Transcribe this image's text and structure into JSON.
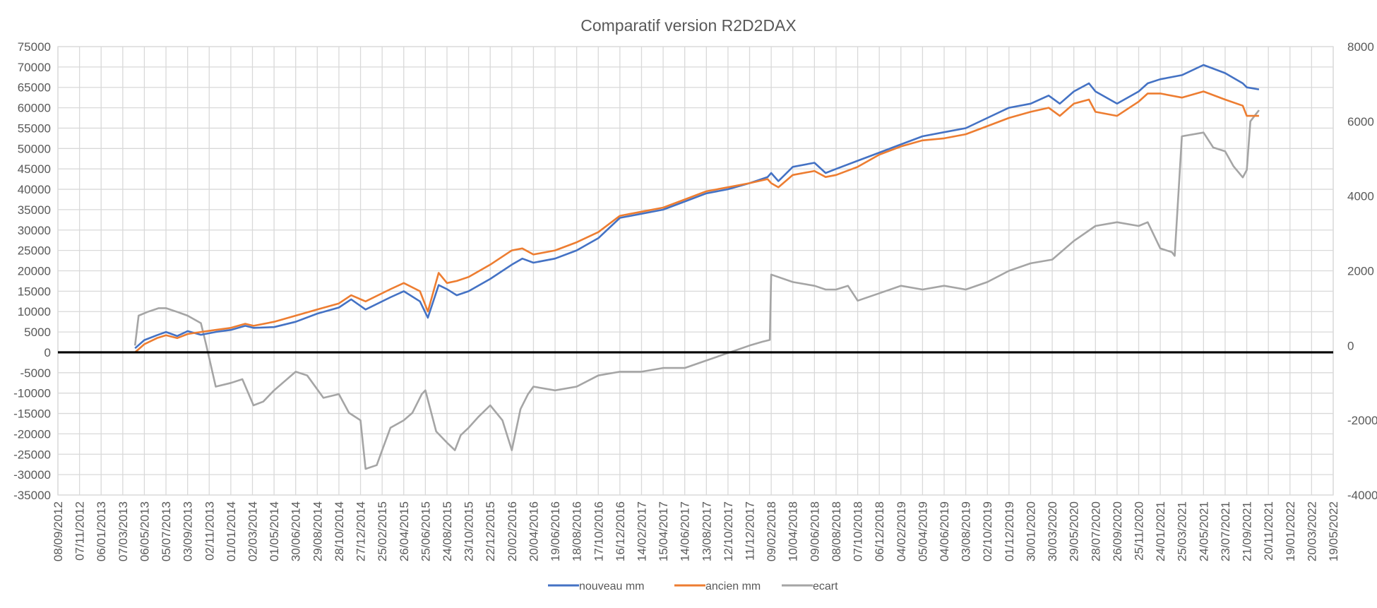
{
  "chart_data": {
    "type": "line",
    "title": "Comparatif version R2D2DAX",
    "xlabel": "",
    "ylabel": "",
    "y2label": "",
    "xlim": [
      "2012-09-08",
      "2022-05-19"
    ],
    "ylim": [
      -35000,
      75000
    ],
    "y2lim": [
      -4000,
      8000
    ],
    "x_tick_labels": [
      "08/09/2012",
      "07/11/2012",
      "06/01/2013",
      "07/03/2013",
      "06/05/2013",
      "05/07/2013",
      "03/09/2013",
      "02/11/2013",
      "01/01/2014",
      "02/03/2014",
      "01/05/2014",
      "30/06/2014",
      "29/08/2014",
      "28/10/2014",
      "27/12/2014",
      "25/02/2015",
      "26/04/2015",
      "25/06/2015",
      "24/08/2015",
      "23/10/2015",
      "22/12/2015",
      "20/02/2016",
      "20/04/2016",
      "19/06/2016",
      "18/08/2016",
      "17/10/2016",
      "16/12/2016",
      "14/02/2017",
      "15/04/2017",
      "14/06/2017",
      "13/08/2017",
      "12/10/2017",
      "11/12/2017",
      "09/02/2018",
      "10/04/2018",
      "09/06/2018",
      "08/08/2018",
      "07/10/2018",
      "06/12/2018",
      "04/02/2019",
      "05/04/2019",
      "04/06/2019",
      "03/08/2019",
      "02/10/2019",
      "01/12/2019",
      "30/01/2020",
      "30/03/2020",
      "29/05/2020",
      "28/07/2020",
      "26/09/2020",
      "25/11/2020",
      "24/01/2021",
      "25/03/2021",
      "24/05/2021",
      "23/07/2021",
      "21/09/2021",
      "20/11/2021",
      "19/01/2022",
      "20/03/2022",
      "19/05/2022"
    ],
    "y_tick_labels": [
      "75000",
      "70000",
      "65000",
      "60000",
      "55000",
      "50000",
      "45000",
      "40000",
      "35000",
      "30000",
      "25000",
      "20000",
      "15000",
      "10000",
      "5000",
      "0",
      "-5000",
      "-10000",
      "-15000",
      "-20000",
      "-25000",
      "-30000",
      "-35000"
    ],
    "y2_tick_labels": [
      "8000",
      "6000",
      "4000",
      "2000",
      "0",
      "-2000",
      "-4000"
    ],
    "grid": true,
    "legend_position": "bottom",
    "baseline_color": "#000000",
    "series": [
      {
        "name": "nouveau mm",
        "axis": "primary",
        "color": "#4472C4",
        "x": [
          "2013-04-10",
          "2013-05-06",
          "2013-06-10",
          "2013-07-05",
          "2013-08-05",
          "2013-09-03",
          "2013-10-10",
          "2013-11-20",
          "2014-01-01",
          "2014-02-10",
          "2014-03-05",
          "2014-05-01",
          "2014-06-30",
          "2014-08-29",
          "2014-10-28",
          "2014-12-01",
          "2015-01-10",
          "2015-03-20",
          "2015-04-26",
          "2015-06-10",
          "2015-07-02",
          "2015-08-01",
          "2015-08-24",
          "2015-09-20",
          "2015-10-23",
          "2015-12-22",
          "2016-02-20",
          "2016-03-20",
          "2016-04-20",
          "2016-06-19",
          "2016-08-18",
          "2016-10-17",
          "2016-12-16",
          "2017-02-14",
          "2017-04-15",
          "2017-06-14",
          "2017-08-13",
          "2017-10-12",
          "2017-12-11",
          "2018-01-30",
          "2018-02-09",
          "2018-03-01",
          "2018-04-10",
          "2018-06-09",
          "2018-07-10",
          "2018-08-08",
          "2018-10-07",
          "2018-12-06",
          "2019-02-04",
          "2019-04-05",
          "2019-06-04",
          "2019-08-03",
          "2019-10-02",
          "2019-12-01",
          "2020-01-30",
          "2020-03-20",
          "2020-04-20",
          "2020-05-29",
          "2020-07-10",
          "2020-07-28",
          "2020-09-26",
          "2020-11-25",
          "2020-12-20",
          "2021-01-24",
          "2021-03-25",
          "2021-05-24",
          "2021-07-23",
          "2021-09-10",
          "2021-09-21",
          "2021-10-25"
        ],
        "y": [
          1000,
          3000,
          4200,
          5000,
          4000,
          5200,
          4300,
          5000,
          5500,
          6500,
          6000,
          6200,
          7500,
          9500,
          11000,
          13000,
          10500,
          13500,
          15000,
          12500,
          8500,
          16500,
          15500,
          14000,
          15000,
          18000,
          21500,
          23000,
          22000,
          23000,
          25000,
          28000,
          33000,
          34000,
          35000,
          37000,
          39000,
          40000,
          41500,
          43000,
          44000,
          42000,
          45500,
          46500,
          44000,
          45000,
          47000,
          49000,
          51000,
          53000,
          54000,
          55000,
          57500,
          60000,
          61000,
          63000,
          61000,
          64000,
          66000,
          64000,
          61000,
          64000,
          66000,
          67000,
          68000,
          70500,
          68500,
          66000,
          65000,
          64500
        ]
      },
      {
        "name": "ancien mm",
        "axis": "primary",
        "color": "#ED7D31",
        "x": [
          "2013-04-10",
          "2013-05-06",
          "2013-06-10",
          "2013-07-05",
          "2013-08-05",
          "2013-09-03",
          "2013-10-10",
          "2013-11-20",
          "2014-01-01",
          "2014-02-10",
          "2014-03-05",
          "2014-05-01",
          "2014-06-30",
          "2014-08-29",
          "2014-10-28",
          "2014-12-01",
          "2015-01-10",
          "2015-03-20",
          "2015-04-26",
          "2015-06-10",
          "2015-07-02",
          "2015-08-01",
          "2015-08-24",
          "2015-09-20",
          "2015-10-23",
          "2015-12-22",
          "2016-02-20",
          "2016-03-20",
          "2016-04-20",
          "2016-06-19",
          "2016-08-18",
          "2016-10-17",
          "2016-12-16",
          "2017-02-14",
          "2017-04-15",
          "2017-06-14",
          "2017-08-13",
          "2017-10-12",
          "2017-12-11",
          "2018-01-30",
          "2018-02-09",
          "2018-03-01",
          "2018-04-10",
          "2018-06-09",
          "2018-07-10",
          "2018-08-08",
          "2018-10-07",
          "2018-12-06",
          "2019-02-04",
          "2019-04-05",
          "2019-06-04",
          "2019-08-03",
          "2019-10-02",
          "2019-12-01",
          "2020-01-30",
          "2020-03-20",
          "2020-04-20",
          "2020-05-29",
          "2020-07-10",
          "2020-07-28",
          "2020-09-26",
          "2020-11-25",
          "2020-12-20",
          "2021-01-24",
          "2021-03-25",
          "2021-05-24",
          "2021-07-23",
          "2021-09-10",
          "2021-09-21",
          "2021-10-25"
        ],
        "y": [
          0,
          2000,
          3500,
          4200,
          3500,
          4500,
          5000,
          5500,
          6000,
          7000,
          6500,
          7500,
          9000,
          10500,
          12000,
          14000,
          12500,
          15500,
          17000,
          15000,
          10000,
          19500,
          17000,
          17500,
          18500,
          21500,
          25000,
          25500,
          24000,
          25000,
          27000,
          29500,
          33500,
          34500,
          35500,
          37500,
          39500,
          40500,
          41500,
          42500,
          41500,
          40500,
          43500,
          44500,
          43000,
          43500,
          45500,
          48500,
          50500,
          52000,
          52500,
          53500,
          55500,
          57500,
          59000,
          60000,
          58000,
          61000,
          62000,
          59000,
          58000,
          61500,
          63500,
          63500,
          62500,
          64000,
          62000,
          60500,
          58000,
          58000
        ]
      },
      {
        "name": "ecart",
        "axis": "secondary",
        "color": "#A5A5A5",
        "x": [
          "2013-04-10",
          "2013-04-20",
          "2013-05-15",
          "2013-06-15",
          "2013-07-05",
          "2013-08-05",
          "2013-09-03",
          "2013-10-10",
          "2013-10-25",
          "2013-11-20",
          "2014-01-01",
          "2014-02-02",
          "2014-03-05",
          "2014-04-01",
          "2014-05-01",
          "2014-06-30",
          "2014-08-01",
          "2014-09-15",
          "2014-10-28",
          "2014-11-25",
          "2014-12-27",
          "2015-01-10",
          "2015-02-10",
          "2015-02-25",
          "2015-03-20",
          "2015-04-26",
          "2015-05-20",
          "2015-06-15",
          "2015-06-25",
          "2015-07-25",
          "2015-08-24",
          "2015-09-15",
          "2015-10-01",
          "2015-10-23",
          "2015-11-20",
          "2015-12-22",
          "2016-01-25",
          "2016-02-20",
          "2016-03-15",
          "2016-04-05",
          "2016-04-20",
          "2016-06-19",
          "2016-08-18",
          "2016-10-17",
          "2016-12-16",
          "2017-02-14",
          "2017-04-15",
          "2017-06-14",
          "2017-08-13",
          "2017-10-12",
          "2017-12-11",
          "2018-01-15",
          "2018-02-05",
          "2018-02-09",
          "2018-04-10",
          "2018-06-09",
          "2018-07-10",
          "2018-08-08",
          "2018-09-10",
          "2018-10-07",
          "2018-12-06",
          "2019-02-04",
          "2019-04-05",
          "2019-06-04",
          "2019-08-03",
          "2019-10-02",
          "2019-12-01",
          "2020-01-30",
          "2020-03-30",
          "2020-05-29",
          "2020-07-28",
          "2020-09-26",
          "2020-11-25",
          "2020-12-20",
          "2021-01-24",
          "2021-02-25",
          "2021-03-05",
          "2021-03-25",
          "2021-05-24",
          "2021-06-20",
          "2021-07-23",
          "2021-08-15",
          "2021-09-10",
          "2021-09-21",
          "2021-10-01",
          "2021-10-25"
        ],
        "y": [
          0,
          800,
          900,
          1000,
          1000,
          900,
          800,
          600,
          0,
          -1100,
          -1000,
          -900,
          -1600,
          -1500,
          -1200,
          -700,
          -800,
          -1400,
          -1300,
          -1800,
          -2000,
          -3300,
          -3200,
          -2800,
          -2200,
          -2000,
          -1800,
          -1300,
          -1200,
          -2300,
          -2600,
          -2800,
          -2400,
          -2200,
          -1900,
          -1600,
          -2000,
          -2800,
          -1700,
          -1300,
          -1100,
          -1200,
          -1100,
          -800,
          -700,
          -700,
          -600,
          -600,
          -400,
          -200,
          0,
          100,
          150,
          1900,
          1700,
          1600,
          1500,
          1500,
          1600,
          1200,
          1400,
          1600,
          1500,
          1600,
          1500,
          1700,
          2000,
          2200,
          2300,
          2800,
          3200,
          3300,
          3200,
          3300,
          2600,
          2500,
          2400,
          5600,
          5700,
          5300,
          5200,
          4800,
          4500,
          4700,
          6000,
          6300
        ]
      }
    ]
  }
}
